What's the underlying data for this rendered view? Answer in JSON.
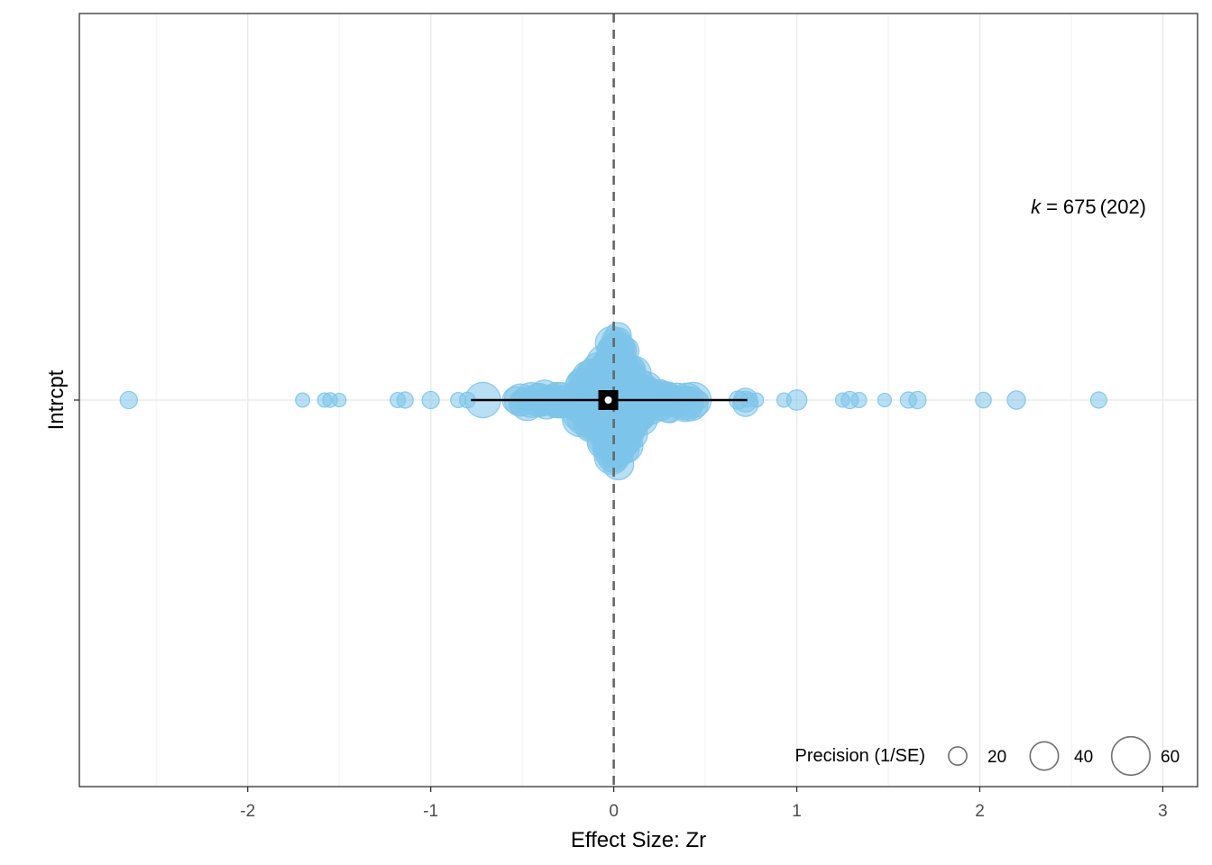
{
  "chart_data": {
    "type": "scatter",
    "subtype": "orchard plot",
    "xlabel": "Effect Size: Zr",
    "ylabel": "Intrcpt",
    "category": "Intrcpt",
    "xlim": [
      -2.92,
      3.19
    ],
    "x_ticks": [
      -2,
      -1,
      0,
      1,
      2,
      3
    ],
    "x_tick_labels": [
      "-2",
      "-1",
      "0",
      "1",
      "2",
      "3"
    ],
    "grid": true,
    "reference_line": 0,
    "point_color": "#7dc4ea",
    "summary": {
      "estimate": -0.03,
      "ci": [
        -0.78,
        0.73
      ],
      "color": "#000000"
    },
    "annotation": {
      "k": "k",
      "eq": "=",
      "value": "675",
      "paren": "(202)"
    },
    "legend": {
      "title": "Precision (1/SE)",
      "position": "bottom-right",
      "sizes": [
        20,
        40,
        60
      ],
      "labels": [
        "20",
        "40",
        "60"
      ]
    },
    "outlier_points": [
      {
        "x": -2.65,
        "p": 18
      },
      {
        "x": -1.7,
        "p": 12
      },
      {
        "x": -1.58,
        "p": 12
      },
      {
        "x": -1.55,
        "p": 13
      },
      {
        "x": -1.5,
        "p": 11
      },
      {
        "x": -1.18,
        "p": 14
      },
      {
        "x": -1.14,
        "p": 16
      },
      {
        "x": -1.0,
        "p": 18
      },
      {
        "x": -0.85,
        "p": 14
      },
      {
        "x": -0.8,
        "p": 15
      },
      {
        "x": 0.68,
        "p": 20
      },
      {
        "x": 0.73,
        "p": 12
      },
      {
        "x": 0.78,
        "p": 12
      },
      {
        "x": 0.93,
        "p": 12
      },
      {
        "x": 1.0,
        "p": 24
      },
      {
        "x": 1.25,
        "p": 12
      },
      {
        "x": 1.29,
        "p": 18
      },
      {
        "x": 1.34,
        "p": 14
      },
      {
        "x": 1.48,
        "p": 11
      },
      {
        "x": 1.61,
        "p": 16
      },
      {
        "x": 1.66,
        "p": 18
      },
      {
        "x": 2.02,
        "p": 15
      },
      {
        "x": 2.2,
        "p": 20
      },
      {
        "x": 2.65,
        "p": 16
      }
    ]
  }
}
